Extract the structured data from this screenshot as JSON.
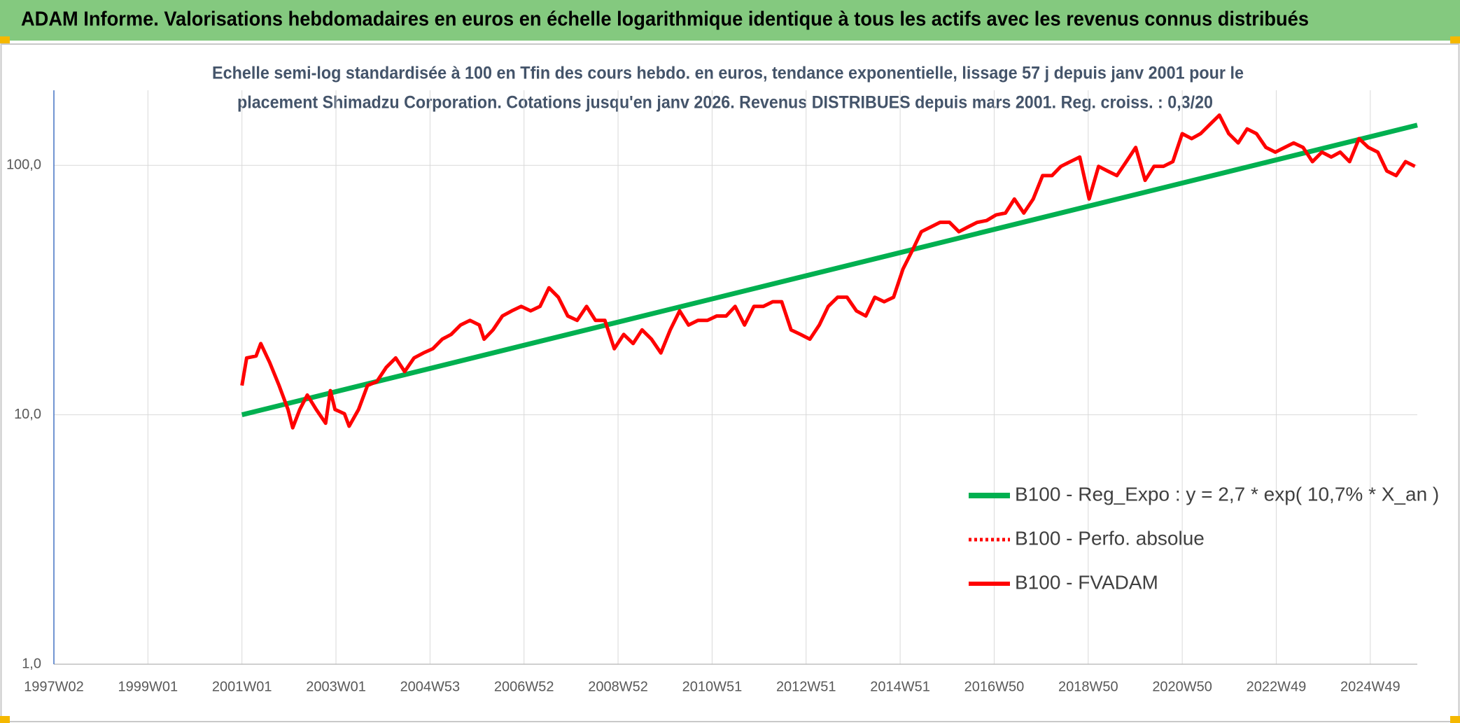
{
  "chart_data": {
    "type": "line",
    "title": "ADAM Informe. Valorisations hebdomadaires en euros en échelle logarithmique identique à tous les actifs avec les revenus connus distribués",
    "subtitle": [
      "Echelle semi-log standardisée à 100 en Tfin des cours hebdo. en euros, tendance exponentielle, lissage 57 j depuis janv 2001 pour le",
      "placement Shimadzu Corporation. Cotations jusqu'en janv 2026. Revenus DISTRIBUES depuis mars 2001. Reg. croiss. : 0,3/20"
    ],
    "yscale": "log",
    "grid": true,
    "legend_position": "right",
    "xlim": [
      1997.0,
      2026.0
    ],
    "xticks": [
      {
        "value": 1997.0,
        "label": "1997W02"
      },
      {
        "value": 1999.0,
        "label": "1999W01"
      },
      {
        "value": 2001.0,
        "label": "2001W01"
      },
      {
        "value": 2003.0,
        "label": "2003W01"
      },
      {
        "value": 2005.0,
        "label": "2004W53"
      },
      {
        "value": 2007.0,
        "label": "2006W52"
      },
      {
        "value": 2009.0,
        "label": "2008W52"
      },
      {
        "value": 2011.0,
        "label": "2010W51"
      },
      {
        "value": 2013.0,
        "label": "2012W51"
      },
      {
        "value": 2015.0,
        "label": "2014W51"
      },
      {
        "value": 2017.0,
        "label": "2016W50"
      },
      {
        "value": 2019.0,
        "label": "2018W50"
      },
      {
        "value": 2021.0,
        "label": "2020W50"
      },
      {
        "value": 2023.0,
        "label": "2022W49"
      },
      {
        "value": 2025.0,
        "label": "2024W49"
      }
    ],
    "ylim": [
      1,
      200
    ],
    "yticks": [
      {
        "value": 1,
        "label": "1,0"
      },
      {
        "value": 10,
        "label": "10,0"
      },
      {
        "value": 100,
        "label": "100,0"
      }
    ],
    "series": [
      {
        "name": "B100 - Reg_Expo : y = 2,7 * exp( 10,7% *  X_an )",
        "color": "#00b050",
        "style": "solid",
        "width": 7,
        "x": [
          2001.0,
          2026.0
        ],
        "values": [
          10.0,
          145
        ]
      },
      {
        "name": "B100 - Perfo. absolue",
        "color": "#ff0000",
        "style": "dotted",
        "width": 4,
        "x": [],
        "values": []
      },
      {
        "name": "B100 - FVADAM",
        "color": "#ff0000",
        "style": "solid",
        "width": 5,
        "x": [
          2001.0,
          2001.1,
          2001.3,
          2001.4,
          2001.59,
          2001.79,
          2001.98,
          2002.08,
          2002.23,
          2002.39,
          2002.58,
          2002.78,
          2002.88,
          2002.98,
          2003.18,
          2003.28,
          2003.48,
          2003.67,
          2003.87,
          2004.07,
          2004.27,
          2004.46,
          2004.66,
          2004.86,
          2005.06,
          2005.26,
          2005.45,
          2005.65,
          2005.85,
          2006.05,
          2006.15,
          2006.34,
          2006.54,
          2006.74,
          2006.94,
          2007.14,
          2007.34,
          2007.53,
          2007.73,
          2007.93,
          2008.13,
          2008.33,
          2008.52,
          2008.72,
          2008.92,
          2009.12,
          2009.32,
          2009.51,
          2009.71,
          2009.91,
          2010.11,
          2010.31,
          2010.5,
          2010.7,
          2010.9,
          2011.1,
          2011.3,
          2011.49,
          2011.69,
          2011.89,
          2012.09,
          2012.29,
          2012.48,
          2012.68,
          2012.88,
          2013.08,
          2013.28,
          2013.47,
          2013.67,
          2013.87,
          2014.07,
          2014.27,
          2014.46,
          2014.66,
          2014.86,
          2015.06,
          2015.26,
          2015.45,
          2015.65,
          2015.85,
          2016.05,
          2016.25,
          2016.44,
          2016.64,
          2016.84,
          2017.04,
          2017.24,
          2017.43,
          2017.63,
          2017.83,
          2018.03,
          2018.23,
          2018.42,
          2018.62,
          2018.82,
          2019.02,
          2019.22,
          2019.41,
          2019.61,
          2019.81,
          2020.01,
          2020.21,
          2020.4,
          2020.6,
          2020.8,
          2021.0,
          2021.2,
          2021.39,
          2021.59,
          2021.79,
          2021.99,
          2022.19,
          2022.38,
          2022.58,
          2022.78,
          2022.98,
          2023.18,
          2023.37,
          2023.57,
          2023.77,
          2023.97,
          2024.17,
          2024.36,
          2024.56,
          2024.76,
          2024.96,
          2025.16,
          2025.35,
          2025.55,
          2025.75,
          2025.95
        ],
        "values": [
          13.1,
          16.9,
          17.2,
          19.3,
          16.2,
          13.1,
          10.5,
          8.87,
          10.5,
          12.0,
          10.5,
          9.25,
          12.5,
          10.5,
          10.1,
          9.0,
          10.5,
          13.1,
          13.6,
          15.5,
          16.9,
          14.9,
          16.9,
          17.7,
          18.4,
          20.1,
          21.0,
          22.9,
          23.9,
          22.9,
          20.1,
          21.9,
          24.9,
          26.1,
          27.2,
          26.1,
          27.2,
          32.3,
          29.6,
          24.9,
          23.9,
          27.2,
          23.9,
          23.9,
          18.4,
          21.0,
          19.3,
          21.9,
          20.1,
          17.7,
          21.9,
          26.1,
          22.9,
          23.9,
          23.9,
          24.9,
          24.9,
          27.2,
          22.9,
          27.2,
          27.2,
          28.4,
          28.4,
          21.9,
          21.0,
          20.1,
          22.9,
          27.2,
          29.6,
          29.6,
          26.1,
          24.9,
          29.6,
          28.4,
          29.6,
          38.4,
          45.6,
          54.2,
          56.6,
          59.1,
          59.1,
          54.2,
          56.6,
          59.1,
          60.1,
          63.3,
          64.4,
          73.3,
          64.4,
          73.3,
          91,
          91,
          99.1,
          103.5,
          108,
          73.3,
          99.1,
          95,
          91,
          103.5,
          118,
          87.1,
          99.1,
          99.1,
          103.5,
          134,
          128,
          134,
          146,
          159,
          134,
          123,
          140,
          134,
          118,
          113,
          118,
          123,
          118,
          103.5,
          113,
          108,
          113,
          103.5,
          128,
          118,
          113,
          95,
          91,
          103.5,
          99.1
        ]
      }
    ]
  }
}
